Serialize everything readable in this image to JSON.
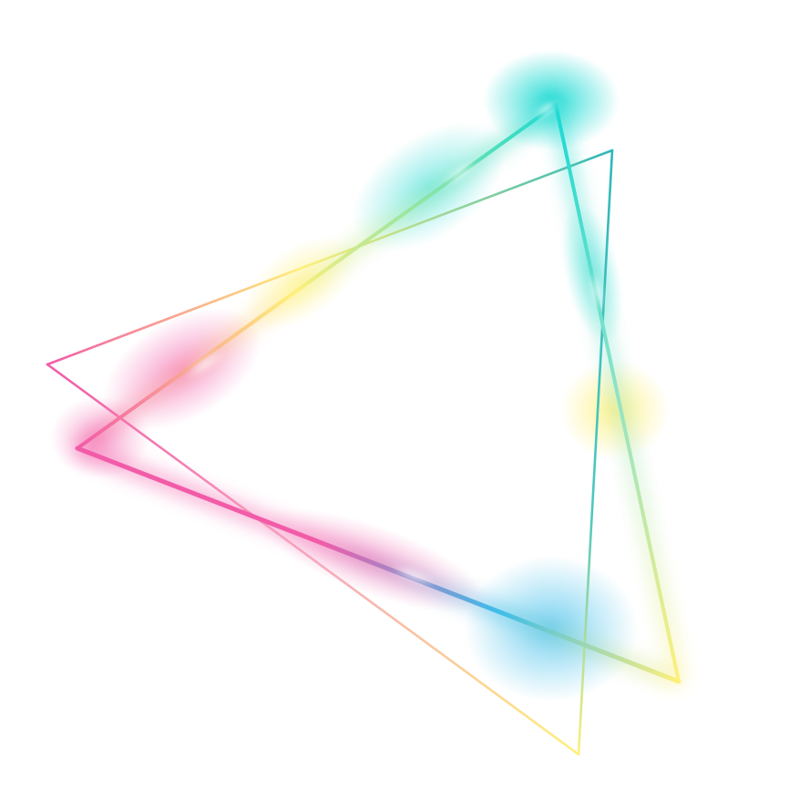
{
  "artwork": {
    "colors": {
      "pink": "#f25ba8",
      "cyan": "#18d9d2",
      "yellow": "#fff07a",
      "blue": "#3dbdea",
      "light_pink": "#f7a6be"
    }
  }
}
